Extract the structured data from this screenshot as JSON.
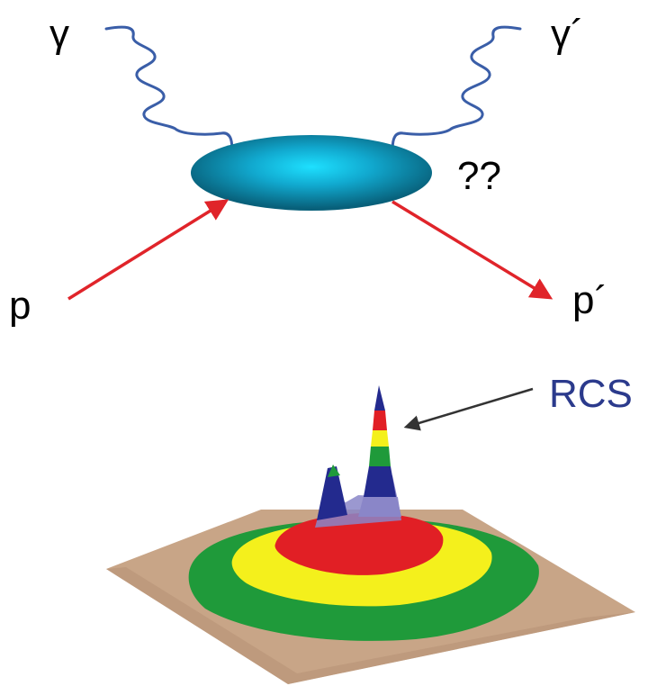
{
  "labels": {
    "photon_in": "γ",
    "photon_out": "γ´",
    "proton_in": "p",
    "proton_out": "p´",
    "unknown": "??",
    "peak": "RCS"
  },
  "colors": {
    "photon": "#3a5ea8",
    "proton": "#e0242a",
    "blob_core": "#1ad0f5",
    "blob_edge": "#0a6b82",
    "pointer": "#333333",
    "peak_label": "#2b3a8c",
    "base": "#c8a587",
    "ring_green": "#1f9a3a",
    "ring_yellow": "#f4f01c",
    "ring_red": "#e11f25",
    "peak_blue": "#232a8e",
    "peak_haze": "#8a86c8"
  }
}
